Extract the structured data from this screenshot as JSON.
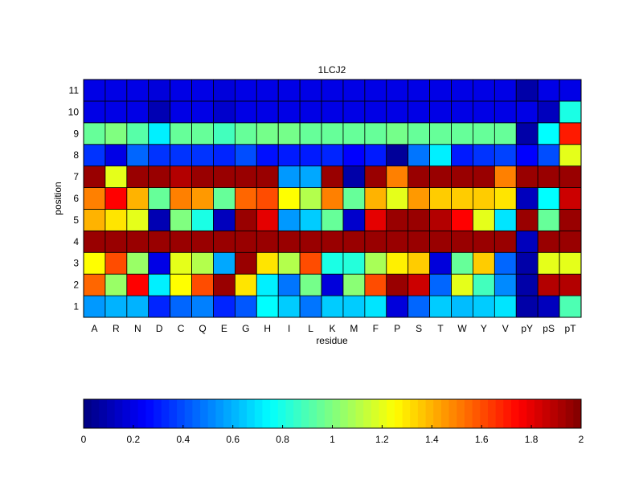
{
  "chart_data": {
    "type": "heatmap",
    "title": "1LCJ2",
    "xlabel": "residue",
    "ylabel": "position",
    "x_categories": [
      "A",
      "R",
      "N",
      "D",
      "C",
      "Q",
      "E",
      "G",
      "H",
      "I",
      "L",
      "K",
      "M",
      "F",
      "P",
      "S",
      "T",
      "W",
      "Y",
      "V",
      "pY",
      "pS",
      "pT"
    ],
    "y_categories": [
      "1",
      "2",
      "3",
      "4",
      "5",
      "6",
      "7",
      "8",
      "9",
      "10",
      "11"
    ],
    "colormap": "jet",
    "clim": [
      0,
      2
    ],
    "colorbar": {
      "orientation": "horizontal",
      "position": "bottom",
      "ticks": [
        0,
        0.2,
        0.4,
        0.6,
        0.8,
        1,
        1.2,
        1.4,
        1.6,
        1.8,
        2
      ],
      "tick_labels": [
        "0",
        "0.2",
        "0.4",
        "0.6",
        "0.8",
        "1",
        "1.2",
        "1.4",
        "1.6",
        "1.8",
        "2"
      ]
    },
    "values_by_position": {
      "1": [
        0.55,
        0.6,
        0.6,
        0.32,
        0.45,
        0.5,
        0.32,
        0.42,
        0.75,
        0.65,
        0.48,
        0.65,
        0.65,
        0.7,
        0.18,
        0.45,
        0.65,
        0.62,
        0.65,
        0.7,
        0.08,
        0.12,
        0.9
      ],
      "2": [
        1.55,
        1.05,
        1.75,
        0.72,
        1.25,
        1.6,
        1.95,
        1.3,
        0.72,
        0.48,
        0.98,
        0.18,
        1.02,
        1.6,
        1.95,
        1.85,
        0.45,
        1.2,
        0.88,
        0.52,
        0.08,
        1.9,
        1.9
      ],
      "3": [
        1.25,
        1.6,
        1.05,
        0.2,
        1.2,
        1.1,
        0.58,
        1.95,
        1.3,
        1.1,
        1.6,
        0.8,
        0.82,
        1.08,
        1.28,
        1.35,
        0.18,
        0.95,
        1.35,
        0.45,
        0.08,
        1.2,
        1.2
      ],
      "4": [
        1.95,
        1.95,
        1.95,
        1.95,
        1.95,
        1.95,
        1.95,
        1.95,
        1.95,
        1.95,
        1.95,
        1.95,
        1.95,
        1.95,
        1.95,
        1.95,
        1.95,
        1.95,
        1.95,
        1.95,
        0.12,
        1.95,
        1.95
      ],
      "5": [
        1.4,
        1.3,
        1.2,
        0.1,
        1.0,
        0.8,
        0.12,
        1.95,
        1.8,
        0.55,
        0.65,
        0.95,
        0.15,
        1.8,
        1.95,
        1.95,
        1.9,
        1.75,
        1.2,
        0.7,
        1.95,
        0.95,
        1.95
      ],
      "6": [
        1.5,
        1.75,
        1.4,
        0.95,
        1.5,
        1.45,
        0.95,
        1.55,
        1.6,
        1.25,
        1.1,
        1.5,
        0.95,
        1.4,
        1.2,
        1.45,
        1.35,
        1.35,
        1.35,
        1.3,
        0.12,
        0.75,
        1.85
      ],
      "7": [
        1.95,
        1.2,
        1.95,
        1.95,
        1.9,
        1.95,
        1.95,
        1.95,
        1.95,
        0.55,
        0.58,
        1.95,
        0.08,
        1.95,
        1.5,
        1.95,
        1.95,
        1.95,
        1.95,
        1.5,
        1.95,
        1.95,
        1.95
      ],
      "8": [
        0.35,
        0.2,
        0.45,
        0.35,
        0.35,
        0.35,
        0.32,
        0.4,
        0.28,
        0.3,
        0.3,
        0.32,
        0.25,
        0.3,
        0.05,
        0.48,
        0.72,
        0.3,
        0.35,
        0.38,
        0.25,
        0.4,
        1.2
      ],
      "9": [
        0.95,
        1.0,
        0.92,
        0.72,
        0.95,
        0.95,
        0.88,
        0.95,
        0.98,
        0.98,
        0.95,
        0.95,
        0.95,
        0.95,
        0.98,
        0.95,
        0.95,
        0.95,
        0.95,
        0.95,
        0.08,
        0.75,
        1.7
      ],
      "10": [
        0.2,
        0.2,
        0.2,
        0.1,
        0.2,
        0.2,
        0.15,
        0.2,
        0.2,
        0.2,
        0.2,
        0.2,
        0.2,
        0.2,
        0.2,
        0.2,
        0.2,
        0.2,
        0.2,
        0.2,
        0.2,
        0.12,
        0.8
      ],
      "11": [
        0.2,
        0.2,
        0.2,
        0.18,
        0.2,
        0.2,
        0.18,
        0.2,
        0.2,
        0.2,
        0.2,
        0.2,
        0.2,
        0.2,
        0.2,
        0.2,
        0.2,
        0.2,
        0.2,
        0.2,
        0.08,
        0.2,
        0.2
      ]
    }
  }
}
